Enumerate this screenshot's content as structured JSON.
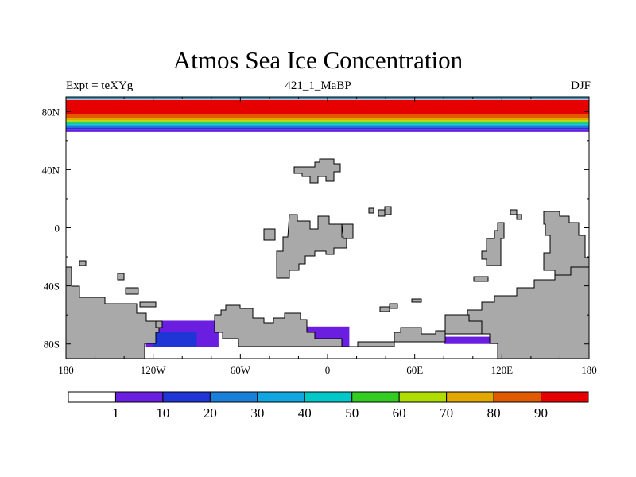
{
  "chart_data": {
    "type": "heatmap",
    "title": "Atmos Sea Ice Concentration",
    "subtitle_left": "Expt = teXYg",
    "subtitle_center": "421_1_MaBP",
    "subtitle_right": "DJF",
    "units": "%",
    "x_axis": {
      "range": [
        -180,
        180
      ],
      "ticks": [
        -180,
        -120,
        -60,
        0,
        60,
        120,
        180
      ],
      "tick_labels": [
        "180",
        "120W",
        "60W",
        "0",
        "60E",
        "120E",
        "180"
      ]
    },
    "y_axis": {
      "range": [
        -90,
        90
      ],
      "ticks": [
        80,
        40,
        0,
        -40,
        -80
      ],
      "tick_labels": [
        "80N",
        "40N",
        "0",
        "40S",
        "80S"
      ]
    },
    "colorbar": {
      "levels": [
        1,
        10,
        20,
        30,
        40,
        50,
        60,
        70,
        80,
        90
      ],
      "labels": [
        "1",
        "10",
        "20",
        "30",
        "40",
        "50",
        "60",
        "70",
        "80",
        "90"
      ],
      "colors": [
        "#ffffff",
        "#6a1fe0",
        "#1f35d6",
        "#1a7fd8",
        "#12a6e0",
        "#00c8c8",
        "#33cc22",
        "#b0dd00",
        "#e0a800",
        "#e05a00",
        "#e60000"
      ]
    },
    "arctic_ice_bands": [
      {
        "lat_min": 66,
        "lat_max": 68,
        "value": 1
      },
      {
        "lat_min": 68,
        "lat_max": 69,
        "value": 15
      },
      {
        "lat_min": 69,
        "lat_max": 70,
        "value": 25
      },
      {
        "lat_min": 70,
        "lat_max": 71,
        "value": 35
      },
      {
        "lat_min": 71,
        "lat_max": 72,
        "value": 45
      },
      {
        "lat_min": 72,
        "lat_max": 73,
        "value": 55
      },
      {
        "lat_min": 73,
        "lat_max": 74,
        "value": 65
      },
      {
        "lat_min": 74,
        "lat_max": 75.5,
        "value": 75
      },
      {
        "lat_min": 75.5,
        "lat_max": 78,
        "value": 85
      },
      {
        "lat_min": 78,
        "lat_max": 88,
        "value": 95
      }
    ],
    "antarctic_ice_regions": [
      {
        "lon_min": -125,
        "lon_max": -75,
        "lat_min": -82,
        "lat_max": -64,
        "value": 5
      },
      {
        "lon_min": -120,
        "lon_max": -90,
        "lat_min": -82,
        "lat_max": -72,
        "value": 15
      },
      {
        "lon_min": -60,
        "lon_max": 15,
        "lat_min": -82,
        "lat_max": -68,
        "value": 5
      },
      {
        "lon_min": -60,
        "lon_max": -25,
        "lat_min": -82,
        "lat_max": -76,
        "value": 15
      },
      {
        "lon_min": 80,
        "lon_max": 120,
        "lat_min": -80,
        "lat_max": -75,
        "value": 5
      }
    ]
  },
  "colors": {
    "land": "#a9a9a9",
    "land_outline": "#000000",
    "frame": "#000000"
  }
}
